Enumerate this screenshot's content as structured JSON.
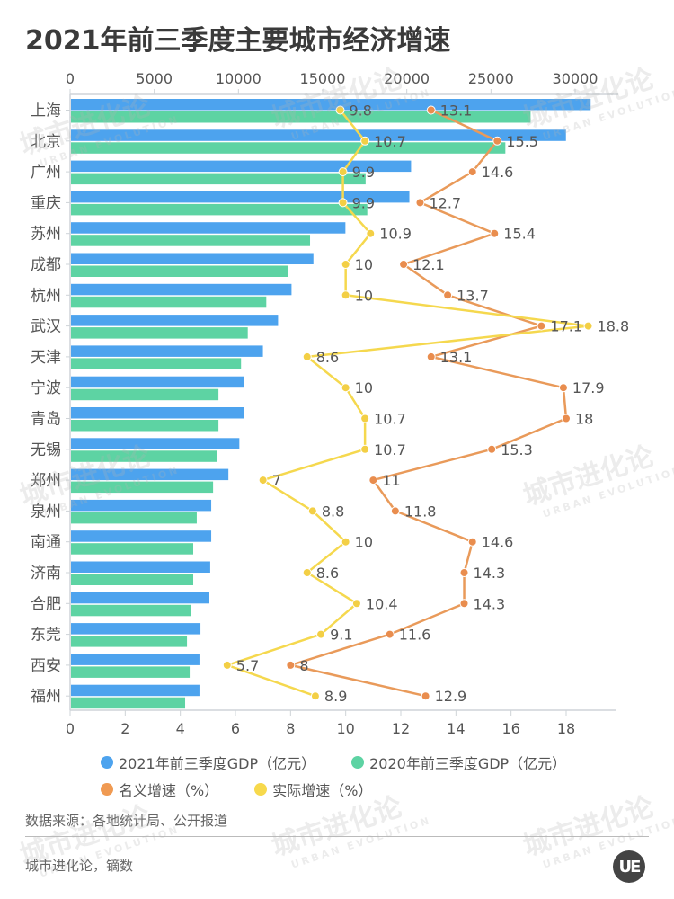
{
  "title": "2021年前三季度主要城市经济增速",
  "chart_data": {
    "type": "bar",
    "orientation": "horizontal",
    "title": "2021年前三季度主要城市经济增速",
    "categories": [
      "上海",
      "北京",
      "广州",
      "重庆",
      "苏州",
      "成都",
      "杭州",
      "武汉",
      "天津",
      "宁波",
      "青岛",
      "无锡",
      "郑州",
      "泉州",
      "南通",
      "济南",
      "合肥",
      "东莞",
      "西安",
      "福州"
    ],
    "top_axis": {
      "label": "GDP（亿元）",
      "min": 0,
      "max": 32000,
      "ticks": [
        0,
        5000,
        10000,
        15000,
        20000,
        25000,
        30000
      ],
      "tick_labels": [
        "0",
        "5000",
        "10000",
        "15000",
        "20000",
        "25000",
        "30000"
      ]
    },
    "bottom_axis": {
      "label": "增速（%）",
      "min": 0,
      "max": 19.8,
      "ticks": [
        0,
        2,
        4,
        6,
        8,
        10,
        12,
        14,
        16,
        18
      ],
      "tick_labels": [
        "0",
        "2",
        "4",
        "6",
        "8",
        "10",
        "12",
        "14",
        "16",
        "18"
      ]
    },
    "series": [
      {
        "name": "2021年前三季度GDP（亿元）",
        "type": "bar",
        "axis": "top",
        "color": "#4da3ee",
        "values": [
          30867,
          29400,
          20200,
          20100,
          16300,
          14400,
          13100,
          12300,
          11400,
          10300,
          10300,
          10000,
          9350,
          8330,
          8330,
          8270,
          8220,
          7690,
          7630,
          7630
        ]
      },
      {
        "name": "2020年前三季度GDP（亿元）",
        "type": "bar",
        "axis": "top",
        "color": "#5dd3a3",
        "values": [
          27300,
          25800,
          17500,
          17600,
          14200,
          12900,
          11600,
          10500,
          10100,
          8760,
          8760,
          8700,
          8440,
          7470,
          7260,
          7260,
          7150,
          6890,
          7050,
          6780
        ]
      },
      {
        "name": "名义增速（%）",
        "type": "line",
        "axis": "bottom",
        "color": "#e99a5a",
        "values": [
          13.1,
          15.5,
          14.6,
          12.7,
          15.4,
          12.1,
          13.7,
          17.1,
          13.1,
          17.9,
          18,
          15.3,
          11,
          11.8,
          14.6,
          14.3,
          14.3,
          11.6,
          8,
          12.9
        ]
      },
      {
        "name": "实际增速（%）",
        "type": "line",
        "axis": "bottom",
        "color": "#f5d84e",
        "values": [
          9.8,
          10.7,
          9.9,
          9.9,
          10.9,
          10,
          10,
          18.8,
          8.6,
          10,
          10.7,
          10.7,
          7,
          8.8,
          10,
          8.6,
          10.4,
          9.1,
          5.7,
          8.9
        ]
      }
    ],
    "legend": "bottom",
    "grid": false
  },
  "legend": [
    {
      "label": "2021年前三季度GDP（亿元）",
      "color": "#4da3ee"
    },
    {
      "label": "2020年前三季度GDP（亿元）",
      "color": "#5dd3a3"
    },
    {
      "label": "名义增速（%）",
      "color": "#f09a52"
    },
    {
      "label": "实际增速（%）",
      "color": "#f7d94c"
    }
  ],
  "source": "数据来源：各地统计局、公开报道",
  "credit": "城市进化论，镝数",
  "logo": "UE",
  "watermark": {
    "cn": "城市进化论",
    "en": "URBAN EVOLUTION"
  }
}
